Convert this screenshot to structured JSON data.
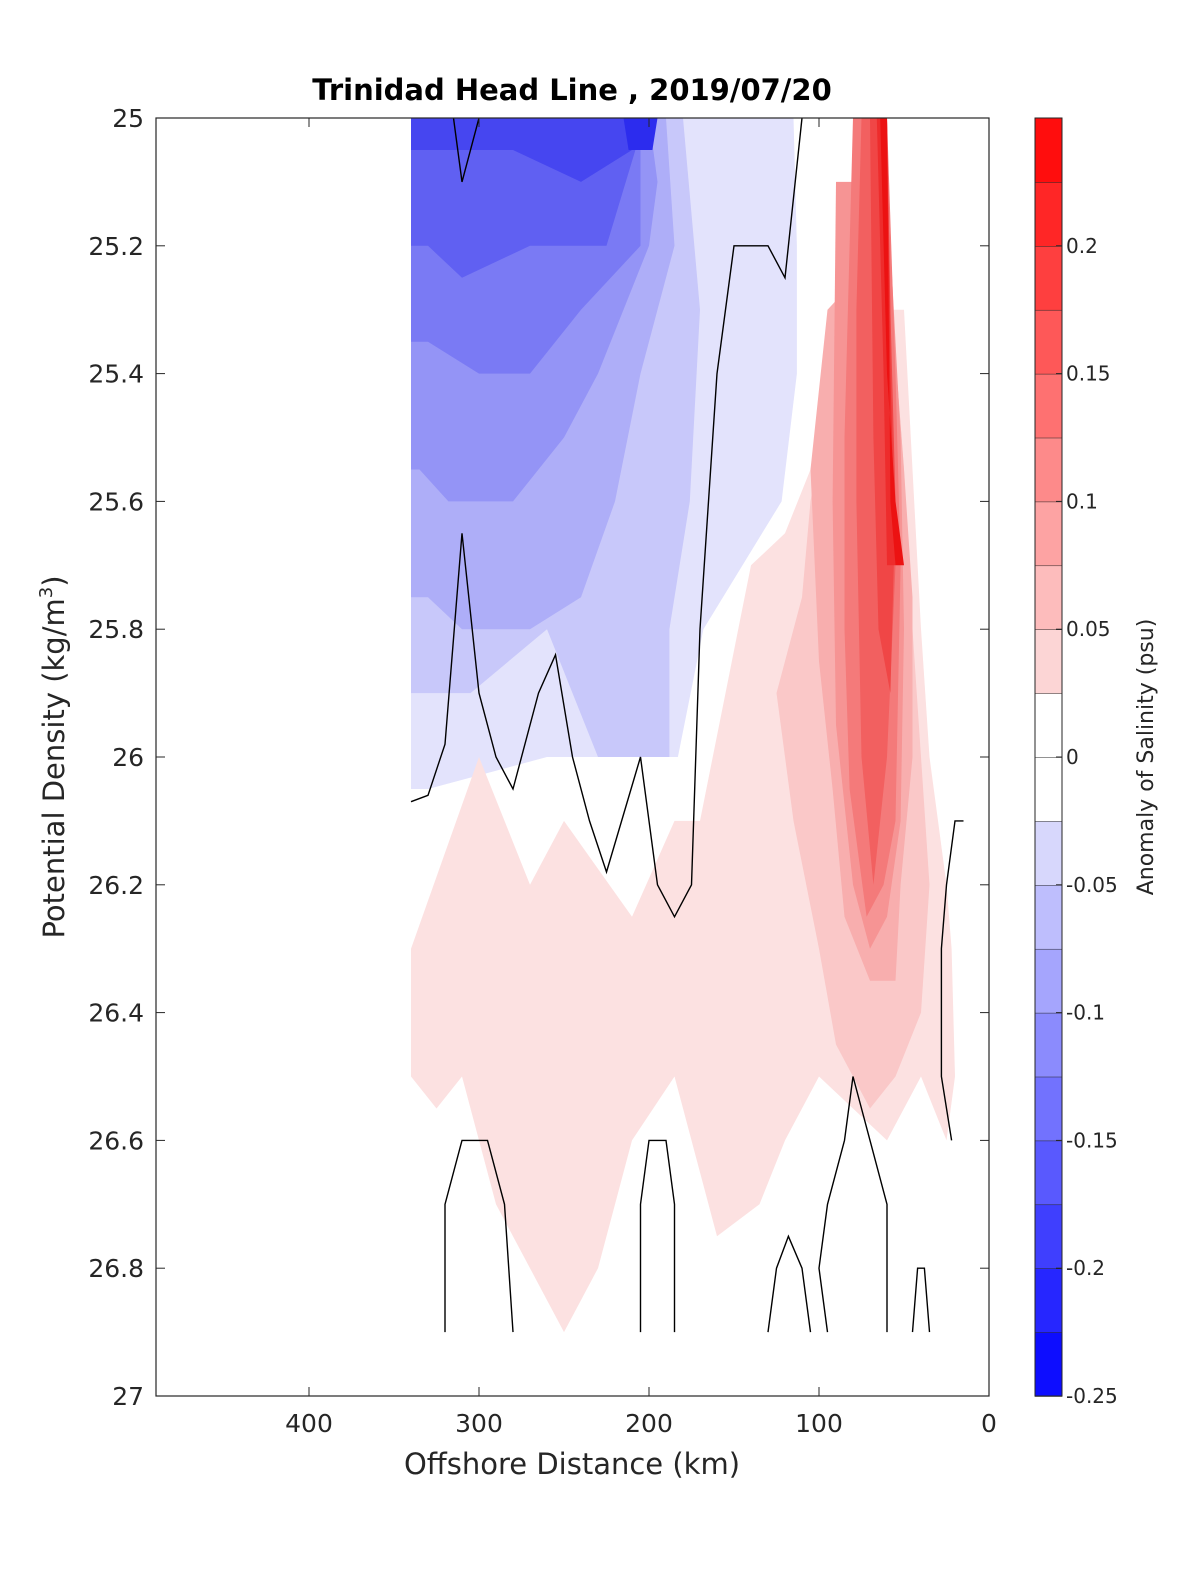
{
  "chart_data": {
    "type": "heatmap",
    "subtype": "filled contour section",
    "title": "Trinidad Head Line , 2019/07/20",
    "xlabel": "Offshore Distance (km)",
    "ylabel_main": "Potential Density (kg/m",
    "ylabel_sup": "3",
    "ylabel_close": ")",
    "xlim": [
      490,
      0
    ],
    "x_reversed": true,
    "ylim": [
      25,
      27
    ],
    "y_reversed": true,
    "x_ticks": [
      400,
      300,
      200,
      100,
      0
    ],
    "x_tick_labels": [
      "400",
      "300",
      "200",
      "100",
      "0"
    ],
    "y_ticks": [
      25,
      25.2,
      25.4,
      25.6,
      25.8,
      26,
      26.2,
      26.4,
      26.6,
      26.8,
      27
    ],
    "y_tick_labels": [
      "25",
      "25.2",
      "25.4",
      "25.6",
      "25.8",
      "26",
      "26.2",
      "26.4",
      "26.6",
      "26.8",
      "27"
    ],
    "grid": false,
    "colorbar": {
      "label": "Anomaly of Salinity (psu)",
      "range": [
        -0.25,
        0.25
      ],
      "level_step": 0.025,
      "ticks": [
        -0.25,
        -0.2,
        -0.15,
        -0.1,
        -0.05,
        0,
        0.05,
        0.1,
        0.15,
        0.2
      ],
      "tick_labels": [
        "-0.25",
        "-0.2",
        "-0.15",
        "-0.1",
        "-0.05",
        "0",
        "0.05",
        "0.1",
        "0.15",
        "0.2"
      ],
      "colormap": "blue-white-red",
      "low_color": "#0000ff",
      "mid_color": "#ffffff",
      "high_color": "#ff0000"
    },
    "zero_contour_color": "#000000",
    "filled_regions": [
      {
        "level": -0.025,
        "color": "#e3e3fc",
        "points": [
          [
            340,
            25
          ],
          [
            255,
            25
          ],
          [
            165,
            25
          ],
          [
            115,
            25
          ],
          [
            113,
            25.2
          ],
          [
            113,
            25.4
          ],
          [
            122,
            25.6
          ],
          [
            168,
            25.8
          ],
          [
            183,
            26.0
          ],
          [
            200,
            26.0
          ],
          [
            260,
            26.0
          ],
          [
            330,
            26.05
          ],
          [
            340,
            26.05
          ]
        ]
      },
      {
        "level": -0.05,
        "color": "#c8c8fa",
        "points": [
          [
            340,
            25
          ],
          [
            180,
            25
          ],
          [
            170,
            25.3
          ],
          [
            176,
            25.6
          ],
          [
            188,
            25.8
          ],
          [
            188,
            26.0
          ],
          [
            230,
            26.0
          ],
          [
            260,
            25.8
          ],
          [
            305,
            25.9
          ],
          [
            330,
            25.9
          ],
          [
            340,
            25.9
          ]
        ]
      },
      {
        "level": -0.075,
        "color": "#aeaef8",
        "points": [
          [
            340,
            25
          ],
          [
            190,
            25
          ],
          [
            185,
            25.2
          ],
          [
            205,
            25.4
          ],
          [
            220,
            25.6
          ],
          [
            240,
            25.75
          ],
          [
            270,
            25.8
          ],
          [
            310,
            25.8
          ],
          [
            330,
            25.75
          ],
          [
            340,
            25.75
          ]
        ]
      },
      {
        "level": -0.1,
        "color": "#9494f6",
        "points": [
          [
            340,
            25
          ],
          [
            200,
            25
          ],
          [
            195,
            25.1
          ],
          [
            200,
            25.2
          ],
          [
            230,
            25.4
          ],
          [
            250,
            25.5
          ],
          [
            280,
            25.6
          ],
          [
            318,
            25.6
          ],
          [
            335,
            25.55
          ],
          [
            340,
            25.55
          ]
        ]
      },
      {
        "level": -0.125,
        "color": "#7a7af4",
        "points": [
          [
            340,
            25
          ],
          [
            205,
            25
          ],
          [
            205,
            25.2
          ],
          [
            240,
            25.3
          ],
          [
            270,
            25.4
          ],
          [
            300,
            25.4
          ],
          [
            330,
            25.35
          ],
          [
            340,
            25.35
          ]
        ]
      },
      {
        "level": -0.15,
        "color": "#6060f2",
        "points": [
          [
            340,
            25
          ],
          [
            205,
            25
          ],
          [
            208,
            25.05
          ],
          [
            225,
            25.2
          ],
          [
            270,
            25.2
          ],
          [
            310,
            25.25
          ],
          [
            330,
            25.2
          ],
          [
            340,
            25.2
          ]
        ]
      },
      {
        "level": -0.175,
        "color": "#4646f0",
        "points": [
          [
            340,
            25
          ],
          [
            205,
            25
          ],
          [
            210,
            25.05
          ],
          [
            240,
            25.1
          ],
          [
            280,
            25.05
          ],
          [
            330,
            25.05
          ],
          [
            340,
            25.05
          ]
        ]
      },
      {
        "level": -0.2,
        "color": "#2c2cee",
        "points": [
          [
            215,
            25
          ],
          [
            195,
            25
          ],
          [
            198,
            25.05
          ],
          [
            212,
            25.05
          ]
        ]
      },
      {
        "level": 0.025,
        "color": "#fce1e1",
        "points": [
          [
            340,
            26.3
          ],
          [
            300,
            26.0
          ],
          [
            270,
            26.2
          ],
          [
            250,
            26.1
          ],
          [
            210,
            26.25
          ],
          [
            185,
            26.1
          ],
          [
            170,
            26.1
          ],
          [
            155,
            25.9
          ],
          [
            140,
            25.7
          ],
          [
            120,
            25.65
          ],
          [
            105,
            25.55
          ],
          [
            85,
            25.3
          ],
          [
            50,
            25.3
          ],
          [
            40,
            25.8
          ],
          [
            35,
            26.0
          ],
          [
            30,
            26.1
          ],
          [
            25,
            26.2
          ],
          [
            22,
            26.3
          ],
          [
            20,
            26.5
          ],
          [
            25,
            26.6
          ],
          [
            40,
            26.5
          ],
          [
            60,
            26.6
          ],
          [
            80,
            26.55
          ],
          [
            100,
            26.5
          ],
          [
            120,
            26.6
          ],
          [
            135,
            26.7
          ],
          [
            160,
            26.75
          ],
          [
            175,
            26.6
          ],
          [
            185,
            26.5
          ],
          [
            210,
            26.6
          ],
          [
            230,
            26.8
          ],
          [
            250,
            26.9
          ],
          [
            270,
            26.8
          ],
          [
            290,
            26.7
          ],
          [
            300,
            26.6
          ],
          [
            310,
            26.5
          ],
          [
            325,
            26.55
          ],
          [
            340,
            26.5
          ]
        ]
      },
      {
        "level": 0.05,
        "color": "#fac8c8",
        "points": [
          [
            105,
            25.6
          ],
          [
            85,
            25.3
          ],
          [
            60,
            25.2
          ],
          [
            50,
            25.55
          ],
          [
            45,
            25.8
          ],
          [
            40,
            26.0
          ],
          [
            35,
            26.2
          ],
          [
            40,
            26.4
          ],
          [
            55,
            26.5
          ],
          [
            70,
            26.55
          ],
          [
            90,
            26.45
          ],
          [
            100,
            26.3
          ],
          [
            115,
            26.1
          ],
          [
            125,
            25.9
          ],
          [
            110,
            25.75
          ]
        ]
      },
      {
        "level": 0.075,
        "color": "#f8aeae",
        "points": [
          [
            95,
            25.3
          ],
          [
            60,
            25.2
          ],
          [
            50,
            25.55
          ],
          [
            45,
            25.75
          ],
          [
            45,
            26.0
          ],
          [
            52,
            26.2
          ],
          [
            55,
            26.35
          ],
          [
            70,
            26.35
          ],
          [
            85,
            26.25
          ],
          [
            92,
            26.05
          ],
          [
            100,
            25.85
          ],
          [
            105,
            25.55
          ]
        ]
      },
      {
        "level": 0.1,
        "color": "#f69494",
        "points": [
          [
            90,
            25.1
          ],
          [
            60,
            25.1
          ],
          [
            52,
            25.5
          ],
          [
            50,
            25.8
          ],
          [
            52,
            26.1
          ],
          [
            60,
            26.25
          ],
          [
            70,
            26.3
          ],
          [
            80,
            26.2
          ],
          [
            90,
            25.95
          ],
          [
            92,
            25.6
          ]
        ]
      },
      {
        "level": 0.125,
        "color": "#f47a7a",
        "points": [
          [
            80,
            25
          ],
          [
            60,
            25
          ],
          [
            55,
            25.4
          ],
          [
            52,
            25.7
          ],
          [
            55,
            26.1
          ],
          [
            62,
            26.2
          ],
          [
            72,
            26.25
          ],
          [
            82,
            26.05
          ],
          [
            85,
            25.8
          ],
          [
            85,
            25.5
          ]
        ]
      },
      {
        "level": 0.15,
        "color": "#f26060",
        "points": [
          [
            75,
            25
          ],
          [
            60,
            25
          ],
          [
            58,
            25.3
          ],
          [
            55,
            25.7
          ],
          [
            60,
            26.0
          ],
          [
            68,
            26.2
          ],
          [
            75,
            26.0
          ],
          [
            78,
            25.6
          ],
          [
            78,
            25.3
          ]
        ]
      },
      {
        "level": 0.175,
        "color": "#f04646",
        "points": [
          [
            70,
            25
          ],
          [
            60,
            25
          ],
          [
            58,
            25.3
          ],
          [
            55,
            25.6
          ],
          [
            58,
            25.9
          ],
          [
            65,
            25.8
          ],
          [
            68,
            25.5
          ]
        ]
      },
      {
        "level": 0.2,
        "color": "#ee2c2c",
        "points": [
          [
            66,
            25
          ],
          [
            60,
            25
          ],
          [
            58,
            25.4
          ],
          [
            55,
            25.7
          ],
          [
            60,
            25.7
          ],
          [
            62,
            25.4
          ]
        ]
      },
      {
        "level": 0.225,
        "color": "#ec1212",
        "points": [
          [
            64,
            25
          ],
          [
            60,
            25
          ],
          [
            58,
            25.6
          ],
          [
            55,
            25.7
          ],
          [
            50,
            25.7
          ],
          [
            55,
            25.6
          ],
          [
            60,
            25.4
          ]
        ]
      }
    ],
    "zero_contours": [
      [
        [
          340,
          26.07
        ],
        [
          330,
          26.06
        ],
        [
          320,
          25.98
        ],
        [
          310,
          25.65
        ],
        [
          300,
          25.9
        ],
        [
          290,
          26.0
        ],
        [
          280,
          26.05
        ],
        [
          265,
          25.9
        ],
        [
          255,
          25.84
        ],
        [
          245,
          26.0
        ],
        [
          235,
          26.1
        ],
        [
          225,
          26.18
        ],
        [
          205,
          26.0
        ],
        [
          195,
          26.2
        ],
        [
          185,
          26.25
        ],
        [
          175,
          26.2
        ],
        [
          170,
          25.8
        ],
        [
          165,
          25.6
        ],
        [
          160,
          25.4
        ],
        [
          150,
          25.2
        ],
        [
          140,
          25.2
        ],
        [
          130,
          25.2
        ],
        [
          120,
          25.25
        ],
        [
          110,
          25.0
        ]
      ],
      [
        [
          300,
          25
        ],
        [
          310,
          25.1
        ],
        [
          315,
          25
        ]
      ],
      [
        [
          320,
          26.9
        ],
        [
          320,
          26.7
        ],
        [
          310,
          26.6
        ],
        [
          295,
          26.6
        ],
        [
          285,
          26.7
        ],
        [
          280,
          26.9
        ]
      ],
      [
        [
          205,
          26.9
        ],
        [
          205,
          26.7
        ],
        [
          200,
          26.6
        ],
        [
          190,
          26.6
        ],
        [
          185,
          26.7
        ],
        [
          185,
          26.9
        ]
      ],
      [
        [
          130,
          26.9
        ],
        [
          125,
          26.8
        ],
        [
          118,
          26.75
        ],
        [
          110,
          26.8
        ],
        [
          105,
          26.9
        ]
      ],
      [
        [
          95,
          26.9
        ],
        [
          100,
          26.8
        ],
        [
          95,
          26.7
        ],
        [
          85,
          26.6
        ],
        [
          80,
          26.5
        ],
        [
          70,
          26.6
        ],
        [
          60,
          26.7
        ],
        [
          60,
          26.9
        ]
      ],
      [
        [
          45,
          26.9
        ],
        [
          42,
          26.8
        ],
        [
          38,
          26.8
        ],
        [
          35,
          26.9
        ]
      ],
      [
        [
          22,
          26.6
        ],
        [
          28,
          26.5
        ],
        [
          28,
          26.3
        ],
        [
          25,
          26.2
        ],
        [
          20,
          26.1
        ],
        [
          15,
          26.1
        ]
      ]
    ]
  }
}
